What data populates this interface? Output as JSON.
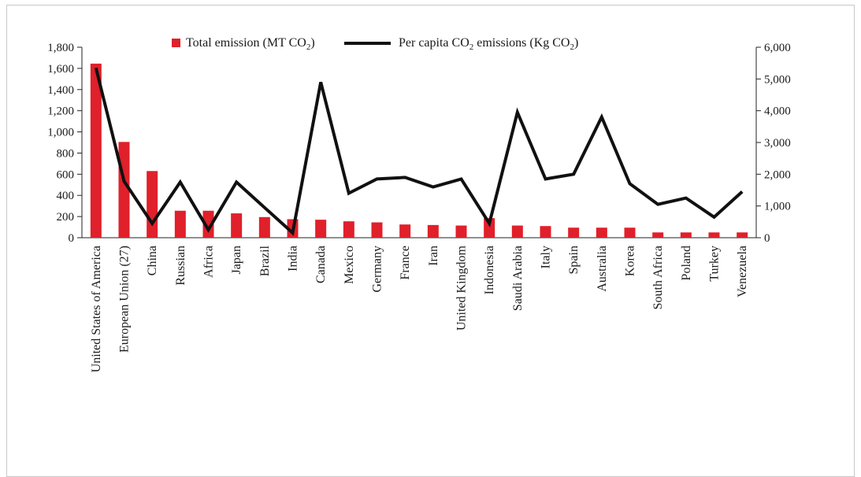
{
  "chart_data": {
    "type": "bar+line",
    "categories": [
      "United States of America",
      "European Union (27)",
      "China",
      "Russian",
      "Africa",
      "Japan",
      "Brazil",
      "India",
      "Canada",
      "Mexico",
      "Germany",
      "France",
      "Iran",
      "United Kingdom",
      "Indonesia",
      "Saudi Arabia",
      "Italy",
      "Spain",
      "Australia",
      "Korea",
      "South Africa",
      "Poland",
      "Turkey",
      "Venezuela"
    ],
    "series": [
      {
        "name": "Total emission (MT CO2)",
        "type": "bar",
        "axis": "left",
        "color": "#e0202a",
        "values": [
          1645,
          905,
          630,
          255,
          255,
          230,
          195,
          175,
          170,
          155,
          145,
          125,
          120,
          115,
          185,
          115,
          110,
          95,
          95,
          95,
          50,
          50,
          50,
          50
        ]
      },
      {
        "name": "Per capita CO2 emissions (Kg CO2)",
        "type": "line",
        "axis": "right",
        "color": "#111111",
        "values": [
          5350,
          1780,
          450,
          1750,
          250,
          1750,
          950,
          150,
          4900,
          1400,
          1850,
          1900,
          1600,
          1850,
          450,
          3950,
          1850,
          2000,
          3800,
          1700,
          1050,
          1250,
          650,
          1450
        ]
      }
    ],
    "y_left": {
      "min": 0,
      "max": 1800,
      "ticks": [
        "0",
        "200",
        "400",
        "600",
        "800",
        "1,000",
        "1,200",
        "1,400",
        "1,600",
        "1,800"
      ]
    },
    "y_right": {
      "min": 0,
      "max": 6000,
      "ticks": [
        "0",
        "1,000",
        "2,000",
        "3,000",
        "4,000",
        "5,000",
        "6,000"
      ]
    },
    "legend": {
      "placement": "top-center",
      "items": [
        {
          "kind": "bar",
          "pre": "Total emission (MT CO",
          "sub": "2",
          "post": ")"
        },
        {
          "kind": "line",
          "pre": "Per capita CO",
          "sub": "2",
          "mid": " emissions (Kg CO",
          "sub2": "2",
          "post": ")"
        }
      ]
    },
    "grid": false
  }
}
